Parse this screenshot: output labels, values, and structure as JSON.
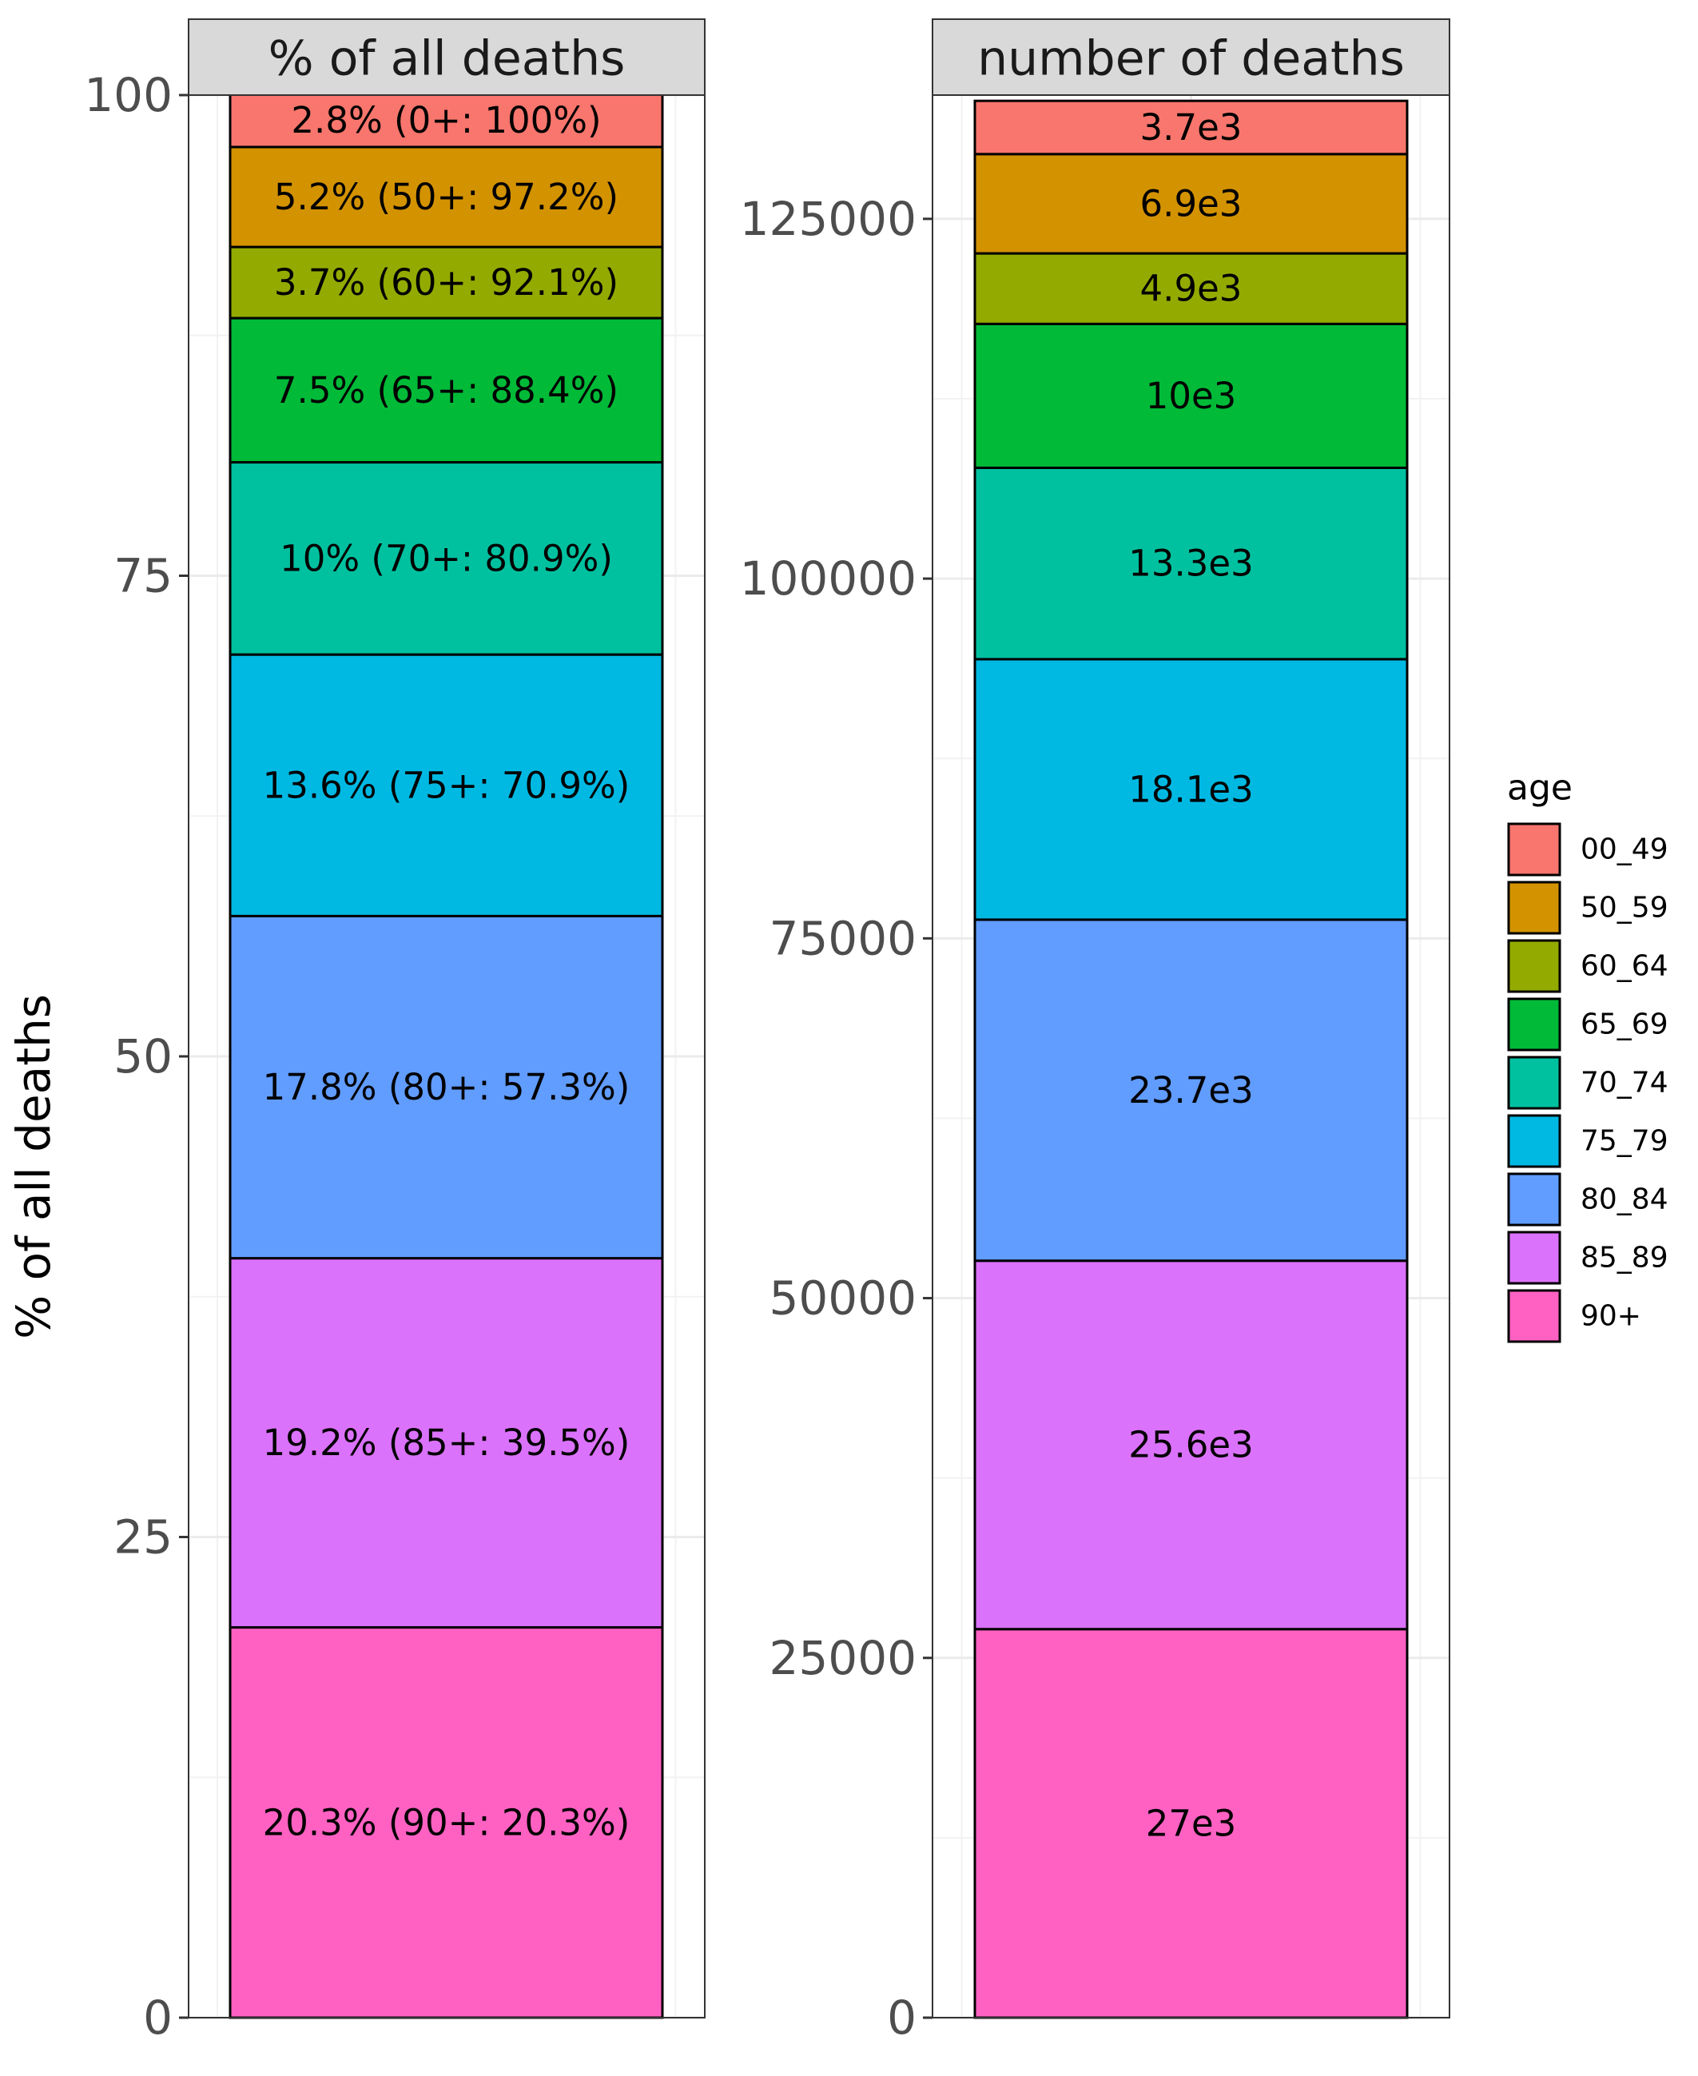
{
  "chart_data": {
    "type": "bar",
    "stacked": true,
    "ylabel": "% of all deaths",
    "legend": {
      "title": "age",
      "position": "right",
      "entries": [
        "00_49",
        "50_59",
        "60_64",
        "65_69",
        "70_74",
        "75_79",
        "80_84",
        "85_89",
        "90+"
      ]
    },
    "colors": [
      "#F8766D",
      "#D39200",
      "#93AA00",
      "#00BA38",
      "#00C19F",
      "#00B9E3",
      "#619CFF",
      "#DB72FB",
      "#FF61C3"
    ],
    "grid": true,
    "panels": [
      {
        "title": "% of all deaths",
        "ylim": [
          0,
          100
        ],
        "yticks": [
          0,
          25,
          50,
          75,
          100
        ],
        "segments": [
          {
            "age": "90+",
            "value": 20.3,
            "label": "20.3% (90+: 20.3%)"
          },
          {
            "age": "85_89",
            "value": 19.2,
            "label": "19.2% (85+: 39.5%)"
          },
          {
            "age": "80_84",
            "value": 17.8,
            "label": "17.8% (80+: 57.3%)"
          },
          {
            "age": "75_79",
            "value": 13.6,
            "label": "13.6% (75+: 70.9%)"
          },
          {
            "age": "70_74",
            "value": 10.0,
            "label": "10% (70+: 80.9%)"
          },
          {
            "age": "65_69",
            "value": 7.5,
            "label": "7.5% (65+: 88.4%)"
          },
          {
            "age": "60_64",
            "value": 3.7,
            "label": "3.7% (60+: 92.1%)"
          },
          {
            "age": "50_59",
            "value": 5.2,
            "label": "5.2% (50+: 97.2%)"
          },
          {
            "age": "00_49",
            "value": 2.8,
            "label": "2.8% (0+: 100%)"
          }
        ]
      },
      {
        "title": "number of deaths",
        "ylim": [
          0,
          133600
        ],
        "yticks": [
          0,
          25000,
          50000,
          75000,
          100000,
          125000
        ],
        "segments": [
          {
            "age": "90+",
            "value": 27000,
            "label": "27e3"
          },
          {
            "age": "85_89",
            "value": 25600,
            "label": "25.6e3"
          },
          {
            "age": "80_84",
            "value": 23700,
            "label": "23.7e3"
          },
          {
            "age": "75_79",
            "value": 18100,
            "label": "18.1e3"
          },
          {
            "age": "70_74",
            "value": 13300,
            "label": "13.3e3"
          },
          {
            "age": "65_69",
            "value": 10000,
            "label": "10e3"
          },
          {
            "age": "60_64",
            "value": 4900,
            "label": "4.9e3"
          },
          {
            "age": "50_59",
            "value": 6900,
            "label": "6.9e3"
          },
          {
            "age": "00_49",
            "value": 3700,
            "label": "3.7e3"
          }
        ]
      }
    ]
  }
}
